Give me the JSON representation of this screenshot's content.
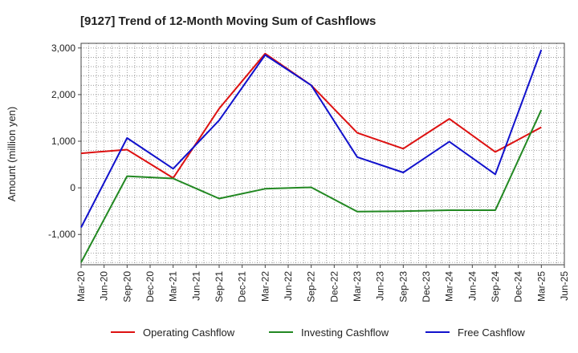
{
  "chart_data": {
    "type": "line",
    "title": "[9127]  Trend of 12-Month Moving Sum of Cashflows",
    "xlabel": "",
    "ylabel": "Amount (million yen)",
    "x_ticks": [
      "Mar-20",
      "Jun-20",
      "Sep-20",
      "Dec-20",
      "Mar-21",
      "Jun-21",
      "Sep-21",
      "Dec-21",
      "Mar-22",
      "Jun-22",
      "Sep-22",
      "Dec-22",
      "Mar-23",
      "Jun-23",
      "Sep-23",
      "Dec-23",
      "Mar-24",
      "Jun-24",
      "Sep-24",
      "Dec-24",
      "Mar-25",
      "Jun-25"
    ],
    "y_ticks": [
      -1000,
      0,
      1000,
      2000,
      3000
    ],
    "y_tick_labels": [
      "-1,000",
      "0",
      "1,000",
      "2,000",
      "3,000"
    ],
    "ylim": [
      -1650,
      3100
    ],
    "grid": true,
    "legend_position": "bottom",
    "series": [
      {
        "name": "Operating Cashflow",
        "color": "#dd1111",
        "points": [
          {
            "x": "Mar-20",
            "y": 740
          },
          {
            "x": "Sep-20",
            "y": 820
          },
          {
            "x": "Mar-21",
            "y": 210
          },
          {
            "x": "Sep-21",
            "y": 1700
          },
          {
            "x": "Mar-22",
            "y": 2880
          },
          {
            "x": "Sep-22",
            "y": 2200
          },
          {
            "x": "Mar-23",
            "y": 1180
          },
          {
            "x": "Sep-23",
            "y": 840
          },
          {
            "x": "Mar-24",
            "y": 1480
          },
          {
            "x": "Sep-24",
            "y": 770
          },
          {
            "x": "Mar-25",
            "y": 1300
          }
        ]
      },
      {
        "name": "Investing Cashflow",
        "color": "#228822",
        "points": [
          {
            "x": "Mar-20",
            "y": -1600
          },
          {
            "x": "Sep-20",
            "y": 250
          },
          {
            "x": "Mar-21",
            "y": 200
          },
          {
            "x": "Sep-21",
            "y": -230
          },
          {
            "x": "Mar-22",
            "y": -20
          },
          {
            "x": "Sep-22",
            "y": 10
          },
          {
            "x": "Mar-23",
            "y": -510
          },
          {
            "x": "Sep-23",
            "y": -500
          },
          {
            "x": "Mar-24",
            "y": -480
          },
          {
            "x": "Sep-24",
            "y": -480
          },
          {
            "x": "Mar-25",
            "y": 1670
          }
        ]
      },
      {
        "name": "Free Cashflow",
        "color": "#1111cc",
        "points": [
          {
            "x": "Mar-20",
            "y": -850
          },
          {
            "x": "Sep-20",
            "y": 1070
          },
          {
            "x": "Mar-21",
            "y": 410
          },
          {
            "x": "Sep-21",
            "y": 1450
          },
          {
            "x": "Mar-22",
            "y": 2850
          },
          {
            "x": "Sep-22",
            "y": 2200
          },
          {
            "x": "Mar-23",
            "y": 660
          },
          {
            "x": "Sep-23",
            "y": 330
          },
          {
            "x": "Mar-24",
            "y": 990
          },
          {
            "x": "Sep-24",
            "y": 290
          },
          {
            "x": "Mar-25",
            "y": 2960
          }
        ]
      }
    ]
  }
}
